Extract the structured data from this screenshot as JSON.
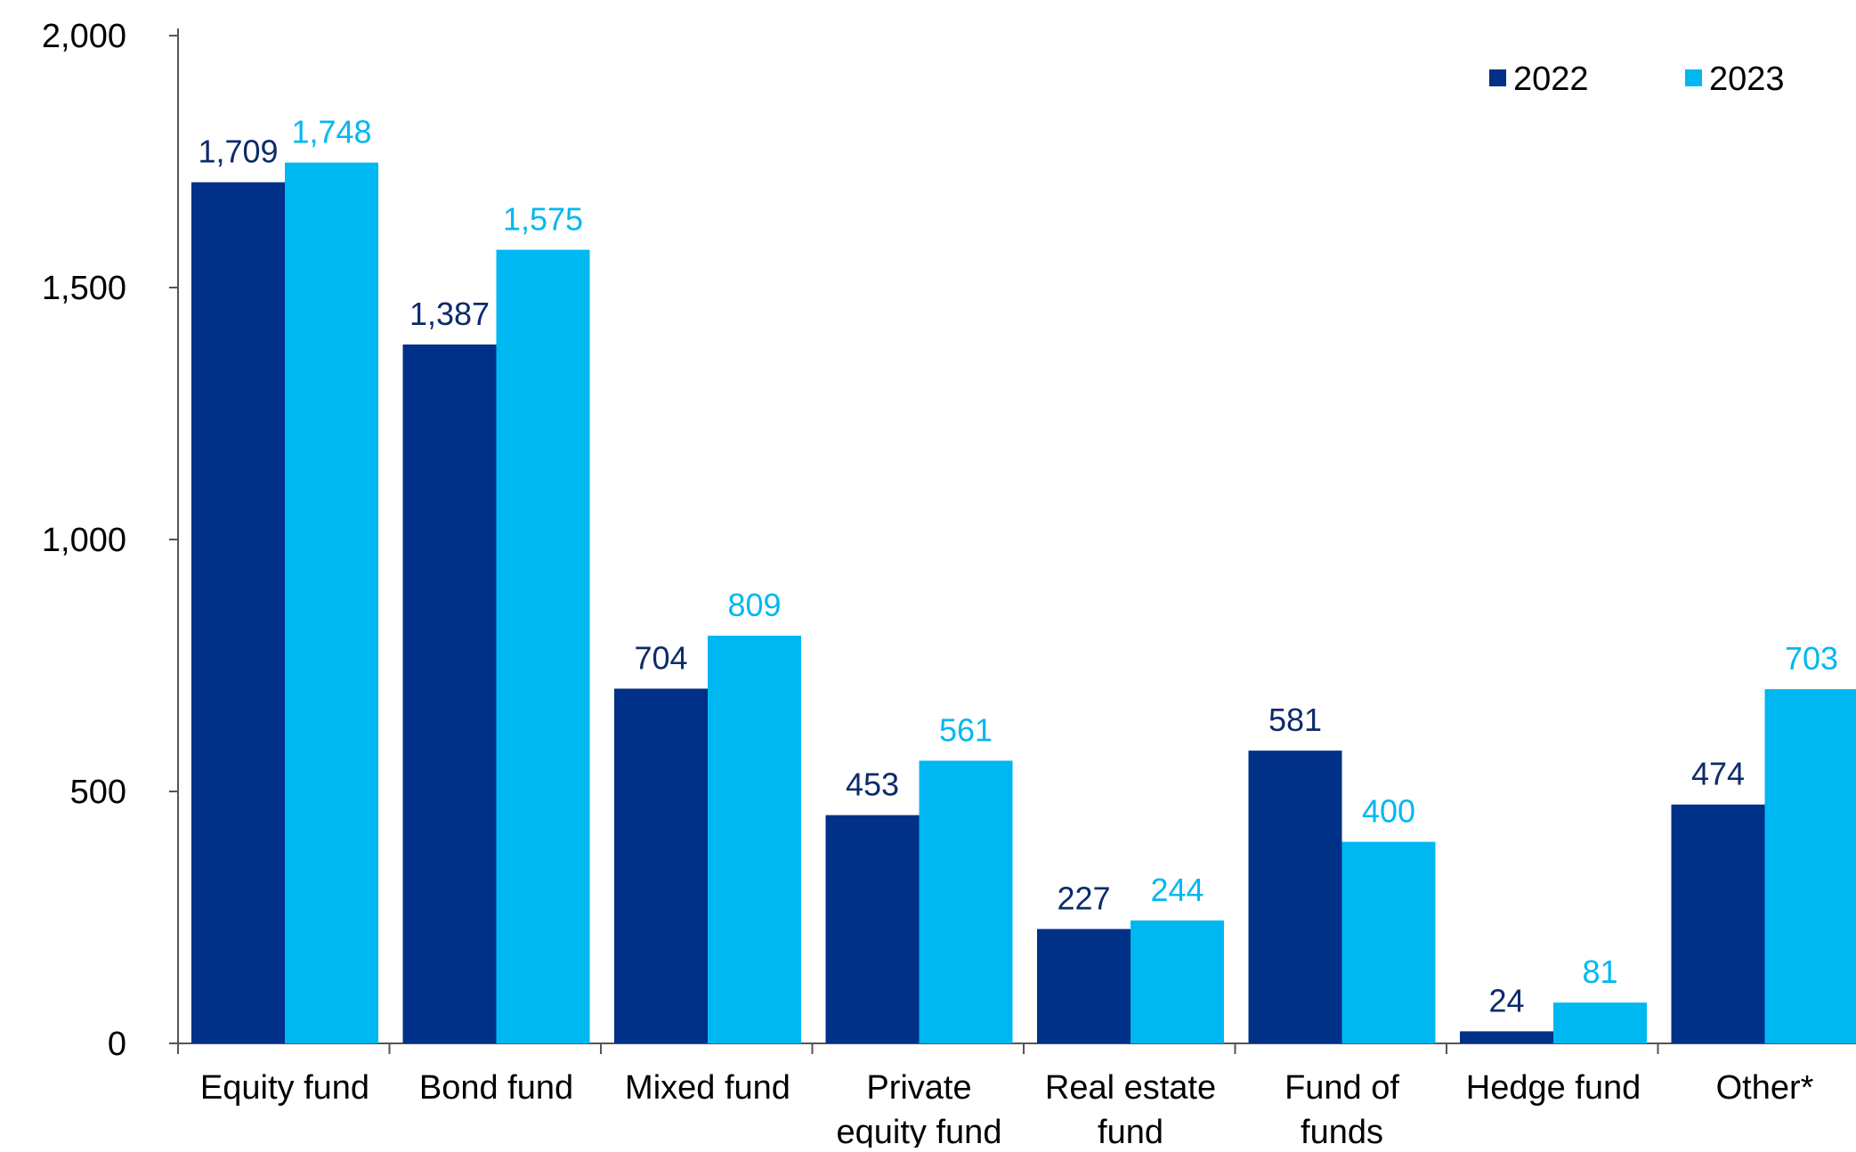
{
  "chart_data": {
    "type": "bar",
    "title": "",
    "xlabel": "",
    "ylabel": "",
    "ylim": [
      0,
      2000
    ],
    "yticks": [
      0,
      500,
      1000,
      1500,
      2000
    ],
    "ytick_labels": [
      "0",
      "500",
      "1,000",
      "1,500",
      "2,000"
    ],
    "grid": false,
    "legend_position": "top-right",
    "categories": [
      [
        "Equity fund"
      ],
      [
        "Bond fund"
      ],
      [
        "Mixed fund"
      ],
      [
        "Private",
        "equity fund"
      ],
      [
        "Real estate",
        "fund"
      ],
      [
        "Fund of",
        "funds"
      ],
      [
        "Hedge fund"
      ],
      [
        "Other*"
      ]
    ],
    "series": [
      {
        "name": "2022",
        "color": "#003087",
        "label_color": "#0d2b6b",
        "values": [
          1709,
          1387,
          704,
          453,
          227,
          581,
          24,
          474
        ],
        "labels": [
          "1,709",
          "1,387",
          "704",
          "453",
          "227",
          "581",
          "24",
          "474"
        ]
      },
      {
        "name": "2023",
        "color": "#00b8f1",
        "label_color": "#00b8f1",
        "values": [
          1748,
          1575,
          809,
          561,
          244,
          400,
          81,
          703
        ],
        "labels": [
          "1,748",
          "1,575",
          "809",
          "561",
          "244",
          "400",
          "81",
          "703"
        ]
      }
    ]
  }
}
